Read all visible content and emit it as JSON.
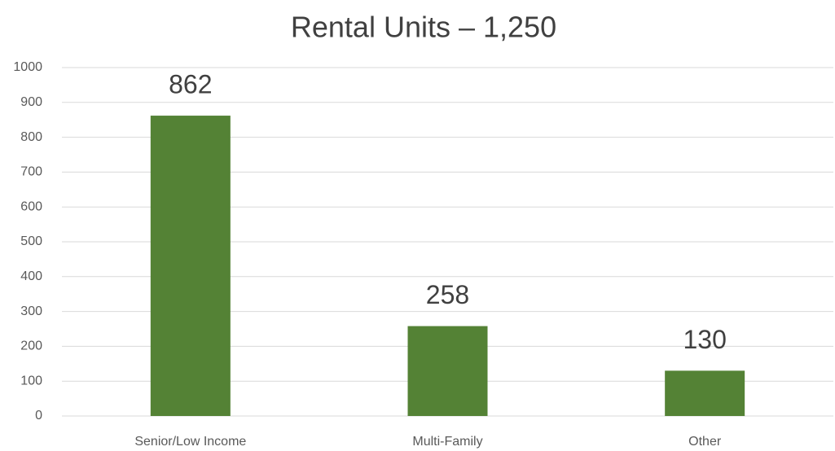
{
  "chart_data": {
    "type": "bar",
    "title": "Rental Units – 1,250",
    "categories": [
      "Senior/Low Income",
      "Multi-Family",
      "Other"
    ],
    "values": [
      862,
      258,
      130
    ],
    "color": "#548235",
    "ylim": [
      0,
      1000
    ],
    "yticks": [
      0,
      100,
      200,
      300,
      400,
      500,
      600,
      700,
      800,
      900,
      1000
    ],
    "grid": true
  }
}
